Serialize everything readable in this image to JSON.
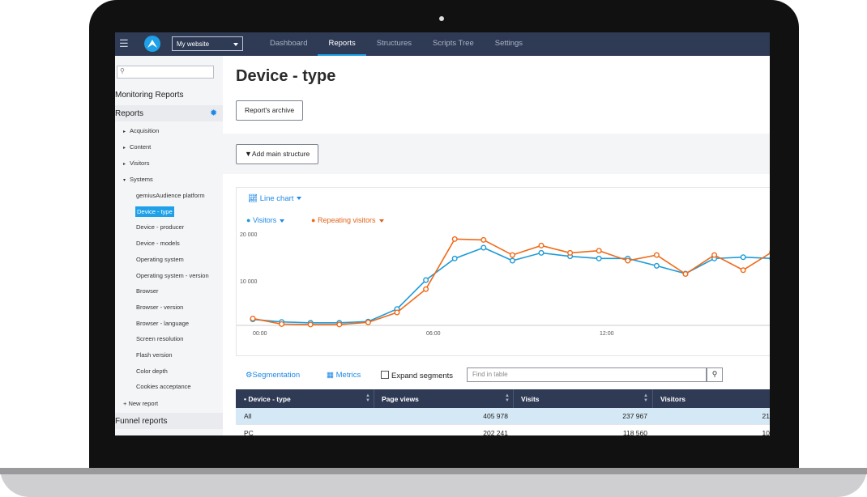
{
  "topbar": {
    "site_select": "My website",
    "nav": [
      "Dashboard",
      "Reports",
      "Structures",
      "Scripts Tree",
      "Settings"
    ],
    "active_nav": "Reports"
  },
  "sidebar": {
    "search_placeholder": "",
    "monitoring_reports": "Monitoring Reports",
    "reports": "Reports",
    "groups": [
      "Acquisition",
      "Content",
      "Visitors",
      "Systems"
    ],
    "systems_items": [
      "gemiusAudience platform",
      "Device - type",
      "Device - producer",
      "Device - models",
      "Operating system",
      "Operating system - version",
      "Browser",
      "Browser - version",
      "Browser - language",
      "Screen resolution",
      "Flash version",
      "Color depth",
      "Cookies acceptance"
    ],
    "active_item": "Device - type",
    "new_report": "+ New report",
    "funnel_reports": "Funnel reports"
  },
  "main": {
    "title": "Device - type",
    "archive_button": "Report's archive",
    "add_structure_button": "Add main structure",
    "chart_type": "Line chart",
    "series_select": [
      "Visitors",
      "Repeating visitors"
    ],
    "tools": {
      "segmentation": "Segmentation",
      "metrics": "Metrics",
      "expand_segments": "Expand segments",
      "find_placeholder": "Find in table"
    },
    "table": {
      "columns": [
        "Device - type",
        "Page views",
        "Visits",
        "Visitors"
      ],
      "rows": [
        {
          "label": "All",
          "page_views": "405 978",
          "visits": "237 967",
          "visitors": "21"
        },
        {
          "label": "PC",
          "page_views": "202 241",
          "visits": "118 560",
          "visitors": "10"
        }
      ]
    }
  },
  "chart_data": {
    "type": "line",
    "x_ticks": [
      "00:00",
      "06:00",
      "12:00"
    ],
    "y_ticks": [
      "20 000",
      "10 000"
    ],
    "ylim": [
      0,
      22500
    ],
    "series": [
      {
        "name": "Visitors",
        "color": "#1e9bd7",
        "values": [
          1400,
          800,
          600,
          600,
          900,
          3800,
          10500,
          15500,
          18000,
          15000,
          16800,
          16000,
          15500,
          15500,
          13800,
          12000,
          15500,
          15800,
          15500
        ]
      },
      {
        "name": "Repeating visitors",
        "color": "#f06a1a",
        "values": [
          1600,
          300,
          200,
          200,
          700,
          3000,
          8400,
          20000,
          19800,
          16300,
          18500,
          16800,
          17300,
          15000,
          16300,
          11900,
          16300,
          12800,
          17000
        ]
      }
    ]
  }
}
